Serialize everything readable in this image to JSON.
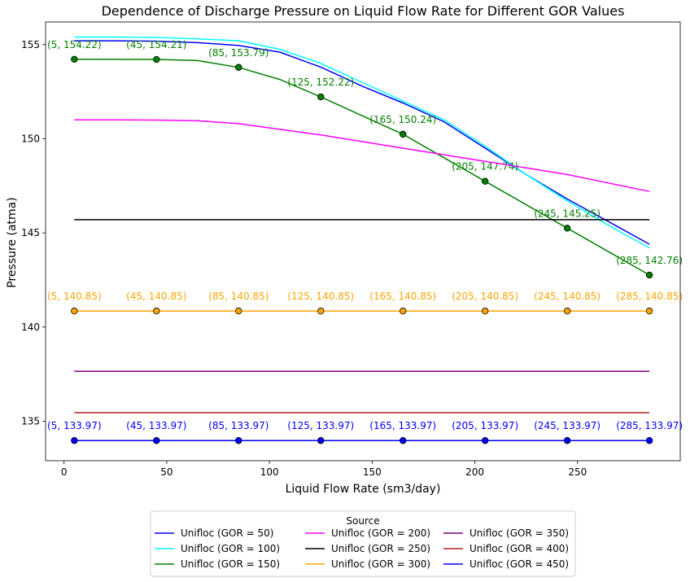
{
  "chart_data": {
    "type": "line",
    "title": "Dependence of Discharge Pressure on Liquid Flow Rate for Different GOR Values",
    "xlabel": "Liquid Flow Rate (sm3/day)",
    "ylabel": "Pressure (atma)",
    "xlim": [
      -9,
      300
    ],
    "ylim": [
      132.9,
      156.2
    ],
    "xticks": [
      0,
      50,
      100,
      150,
      200,
      250
    ],
    "yticks": [
      135,
      140,
      145,
      150,
      155
    ],
    "grid": false,
    "legend": {
      "title": "Source",
      "placement": "bottom-center",
      "columns": 3
    },
    "series": [
      {
        "name": "Unifloc (GOR = 50)",
        "color": "#0000ff",
        "x": [
          5,
          25,
          45,
          65,
          85,
          105,
          125,
          145,
          165,
          185,
          205,
          225,
          245,
          265,
          285
        ],
        "y": [
          155.2,
          155.2,
          155.18,
          155.1,
          154.95,
          154.6,
          153.8,
          152.8,
          151.9,
          150.9,
          149.5,
          148.1,
          146.8,
          145.6,
          144.4
        ],
        "markers": false
      },
      {
        "name": "Unifloc (GOR = 100)",
        "color": "#00ffff",
        "x": [
          5,
          25,
          45,
          65,
          85,
          105,
          125,
          145,
          165,
          185,
          205,
          225,
          245,
          265,
          285
        ],
        "y": [
          155.4,
          155.4,
          155.38,
          155.3,
          155.2,
          154.75,
          154.0,
          153.0,
          152.0,
          151.0,
          149.6,
          148.1,
          146.7,
          145.4,
          144.2
        ],
        "markers": false
      },
      {
        "name": "Unifloc (GOR = 150)",
        "color": "#008000",
        "x": [
          5,
          45,
          65,
          85,
          105,
          125,
          165,
          205,
          245,
          285
        ],
        "y": [
          154.22,
          154.21,
          154.15,
          153.79,
          153.15,
          152.22,
          150.24,
          147.74,
          145.25,
          142.76
        ],
        "markers": true,
        "marker_color": "#008000",
        "labeled_points": [
          {
            "x": 5,
            "y": 154.22,
            "label": "(5, 154.22)"
          },
          {
            "x": 45,
            "y": 154.21,
            "label": "(45, 154.21)"
          },
          {
            "x": 85,
            "y": 153.79,
            "label": "(85, 153.79)"
          },
          {
            "x": 125,
            "y": 152.22,
            "label": "(125, 152.22)"
          },
          {
            "x": 165,
            "y": 150.24,
            "label": "(165, 150.24)"
          },
          {
            "x": 205,
            "y": 147.74,
            "label": "(205, 147.74)"
          },
          {
            "x": 245,
            "y": 145.25,
            "label": "(245, 145.25)"
          },
          {
            "x": 285,
            "y": 142.76,
            "label": "(285, 142.76)"
          }
        ]
      },
      {
        "name": "Unifloc (GOR = 200)",
        "color": "#ff00ff",
        "x": [
          5,
          25,
          45,
          65,
          85,
          105,
          125,
          145,
          165,
          185,
          205,
          225,
          245,
          265,
          285
        ],
        "y": [
          151.0,
          151.0,
          150.99,
          150.95,
          150.8,
          150.5,
          150.2,
          149.85,
          149.5,
          149.15,
          148.8,
          148.45,
          148.1,
          147.65,
          147.2
        ],
        "markers": false
      },
      {
        "name": "Unifloc (GOR = 250)",
        "color": "#000000",
        "x": [
          5,
          285
        ],
        "y": [
          145.7,
          145.7
        ],
        "markers": false
      },
      {
        "name": "Unifloc (GOR = 300)",
        "color": "#ffa500",
        "x": [
          5,
          45,
          85,
          125,
          165,
          205,
          245,
          285
        ],
        "y": [
          140.85,
          140.85,
          140.85,
          140.85,
          140.85,
          140.85,
          140.85,
          140.85
        ],
        "markers": true,
        "marker_color": "#ffa500",
        "labeled_points": [
          {
            "x": 5,
            "y": 140.85,
            "label": "(5, 140.85)"
          },
          {
            "x": 45,
            "y": 140.85,
            "label": "(45, 140.85)"
          },
          {
            "x": 85,
            "y": 140.85,
            "label": "(85, 140.85)"
          },
          {
            "x": 125,
            "y": 140.85,
            "label": "(125, 140.85)"
          },
          {
            "x": 165,
            "y": 140.85,
            "label": "(165, 140.85)"
          },
          {
            "x": 205,
            "y": 140.85,
            "label": "(205, 140.85)"
          },
          {
            "x": 245,
            "y": 140.85,
            "label": "(245, 140.85)"
          },
          {
            "x": 285,
            "y": 140.85,
            "label": "(285, 140.85)"
          }
        ]
      },
      {
        "name": "Unifloc (GOR = 350)",
        "color": "#800080",
        "x": [
          5,
          285
        ],
        "y": [
          137.65,
          137.65
        ],
        "markers": false
      },
      {
        "name": "Unifloc (GOR = 400)",
        "color": "#b22222",
        "x": [
          5,
          285
        ],
        "y": [
          135.45,
          135.45
        ],
        "markers": false
      },
      {
        "name": "Unifloc (GOR = 450)",
        "color": "#0000ff",
        "x": [
          5,
          45,
          85,
          125,
          165,
          205,
          245,
          285
        ],
        "y": [
          133.97,
          133.97,
          133.97,
          133.97,
          133.97,
          133.97,
          133.97,
          133.97
        ],
        "markers": true,
        "marker_color": "#0000ff",
        "labeled_points": [
          {
            "x": 5,
            "y": 133.97,
            "label": "(5, 133.97)"
          },
          {
            "x": 45,
            "y": 133.97,
            "label": "(45, 133.97)"
          },
          {
            "x": 85,
            "y": 133.97,
            "label": "(85, 133.97)"
          },
          {
            "x": 125,
            "y": 133.97,
            "label": "(125, 133.97)"
          },
          {
            "x": 165,
            "y": 133.97,
            "label": "(165, 133.97)"
          },
          {
            "x": 205,
            "y": 133.97,
            "label": "(205, 133.97)"
          },
          {
            "x": 245,
            "y": 133.97,
            "label": "(245, 133.97)"
          },
          {
            "x": 285,
            "y": 133.97,
            "label": "(285, 133.97)"
          }
        ]
      }
    ]
  }
}
